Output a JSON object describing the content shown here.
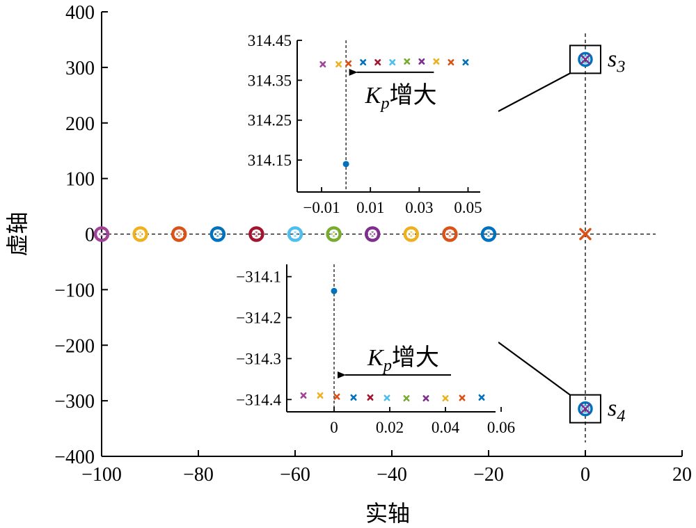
{
  "chart_data": [
    {
      "type": "scatter",
      "role": "main",
      "xlabel": "实轴",
      "ylabel": "虚轴",
      "xlim": [
        -100,
        20
      ],
      "ylim": [
        -400,
        400
      ],
      "xticks": [
        -100,
        -80,
        -60,
        -40,
        -20,
        0,
        20
      ],
      "xtick_labels": [
        "−100",
        "−80",
        "−60",
        "−40",
        "−20",
        "0",
        "20"
      ],
      "yticks": [
        400,
        300,
        200,
        100,
        0,
        -100,
        -200,
        -300,
        -400
      ],
      "ytick_labels": [
        "400",
        "300",
        "200",
        "100",
        "0",
        "−100",
        "−200",
        "−300",
        "−400"
      ],
      "grid": false,
      "series": [
        {
          "color": "#A2439A",
          "points": [
            [
              -100,
              0
            ]
          ]
        },
        {
          "color": "#EEB220",
          "points": [
            [
              -92,
              0
            ]
          ]
        },
        {
          "color": "#D95319",
          "points": [
            [
              -84,
              0
            ]
          ]
        },
        {
          "color": "#0072BD",
          "points": [
            [
              -76,
              0
            ]
          ]
        },
        {
          "color": "#A2142F",
          "points": [
            [
              -68,
              0
            ]
          ]
        },
        {
          "color": "#4DBEEE",
          "points": [
            [
              -60,
              0
            ]
          ]
        },
        {
          "color": "#77AC30",
          "points": [
            [
              -52,
              0
            ]
          ]
        },
        {
          "color": "#7E2F8E",
          "points": [
            [
              -44,
              0
            ]
          ]
        },
        {
          "color": "#EDB120",
          "points": [
            [
              -36,
              0
            ]
          ]
        },
        {
          "color": "#D95319",
          "points": [
            [
              -28,
              0
            ]
          ]
        },
        {
          "color": "#0072BD",
          "points": [
            [
              -20,
              0
            ]
          ]
        },
        {
          "color": "#D95319",
          "marker": "x",
          "points": [
            [
              0,
              0
            ]
          ]
        },
        {
          "color": "#0072BD",
          "points": [
            [
              0,
              314.4
            ],
            [
              0,
              -314.4
            ]
          ]
        }
      ],
      "annotations": [
        {
          "label_main": "s",
          "label_sub": "3",
          "target": [
            0,
            314.4
          ]
        },
        {
          "label_main": "s",
          "label_sub": "4",
          "target": [
            0,
            -314.4
          ]
        }
      ]
    },
    {
      "type": "scatter",
      "role": "inset-top",
      "xlim": [
        -0.02,
        0.055
      ],
      "ylim": [
        314.07,
        314.45
      ],
      "xticks": [
        -0.01,
        0.01,
        0.03,
        0.05
      ],
      "xtick_labels": [
        "−0.01",
        "0.01",
        "0.03",
        "0.05"
      ],
      "yticks": [
        314.45,
        314.35,
        314.25,
        314.15
      ],
      "ytick_labels": [
        "314.45",
        "314.35",
        "314.25",
        "314.15"
      ],
      "points": [
        {
          "x": -0.0095,
          "y": 314.39,
          "color": "#A2439A",
          "marker": "x"
        },
        {
          "x": -0.003,
          "y": 314.39,
          "color": "#EEB220",
          "marker": "x"
        },
        {
          "x": 0.001,
          "y": 314.392,
          "color": "#D95319",
          "marker": "x"
        },
        {
          "x": 0.007,
          "y": 314.395,
          "color": "#0072BD",
          "marker": "x"
        },
        {
          "x": 0.013,
          "y": 314.395,
          "color": "#A2142F",
          "marker": "x"
        },
        {
          "x": 0.019,
          "y": 314.395,
          "color": "#4DBEEE",
          "marker": "x"
        },
        {
          "x": 0.025,
          "y": 314.397,
          "color": "#77AC30",
          "marker": "x"
        },
        {
          "x": 0.031,
          "y": 314.397,
          "color": "#7E2F8E",
          "marker": "x"
        },
        {
          "x": 0.037,
          "y": 314.397,
          "color": "#EDB120",
          "marker": "x"
        },
        {
          "x": 0.043,
          "y": 314.395,
          "color": "#D95319",
          "marker": "x"
        },
        {
          "x": 0.049,
          "y": 314.395,
          "color": "#0072BD",
          "marker": "x"
        },
        {
          "x": 0,
          "y": 314.14,
          "color": "#0072BD",
          "marker": "dot"
        }
      ],
      "arrow": {
        "label_main": "K",
        "label_sub": "p",
        "label_rest": "增大",
        "from_x": 0.036,
        "to_x": 0.001,
        "y": 314.37
      }
    },
    {
      "type": "scatter",
      "role": "inset-bottom",
      "xlim": [
        -0.017,
        0.058
      ],
      "ylim": [
        -314.43,
        -314.07
      ],
      "xticks": [
        0,
        0.02,
        0.04,
        0.06
      ],
      "xtick_labels": [
        "0",
        "0.02",
        "0.04",
        "0.06"
      ],
      "yticks": [
        -314.1,
        -314.2,
        -314.3,
        -314.4
      ],
      "ytick_labels": [
        "−314.1",
        "−314.2",
        "−314.3",
        "−314.4"
      ],
      "points": [
        {
          "x": -0.011,
          "y": -314.39,
          "color": "#A2439A",
          "marker": "x"
        },
        {
          "x": -0.005,
          "y": -314.39,
          "color": "#EEB220",
          "marker": "x"
        },
        {
          "x": 0.001,
          "y": -314.393,
          "color": "#D95319",
          "marker": "x"
        },
        {
          "x": 0.007,
          "y": -314.395,
          "color": "#0072BD",
          "marker": "x"
        },
        {
          "x": 0.013,
          "y": -314.395,
          "color": "#A2142F",
          "marker": "x"
        },
        {
          "x": 0.019,
          "y": -314.396,
          "color": "#4DBEEE",
          "marker": "x"
        },
        {
          "x": 0.026,
          "y": -314.397,
          "color": "#77AC30",
          "marker": "x"
        },
        {
          "x": 0.033,
          "y": -314.397,
          "color": "#7E2F8E",
          "marker": "x"
        },
        {
          "x": 0.04,
          "y": -314.397,
          "color": "#EDB120",
          "marker": "x"
        },
        {
          "x": 0.046,
          "y": -314.396,
          "color": "#D95319",
          "marker": "x"
        },
        {
          "x": 0.053,
          "y": -314.395,
          "color": "#0072BD",
          "marker": "x"
        },
        {
          "x": 0,
          "y": -314.135,
          "color": "#0072BD",
          "marker": "dot"
        }
      ],
      "arrow": {
        "label_main": "K",
        "label_sub": "p",
        "label_rest": "增大",
        "from_x": 0.042,
        "to_x": 0.001,
        "y": -314.34
      }
    }
  ]
}
